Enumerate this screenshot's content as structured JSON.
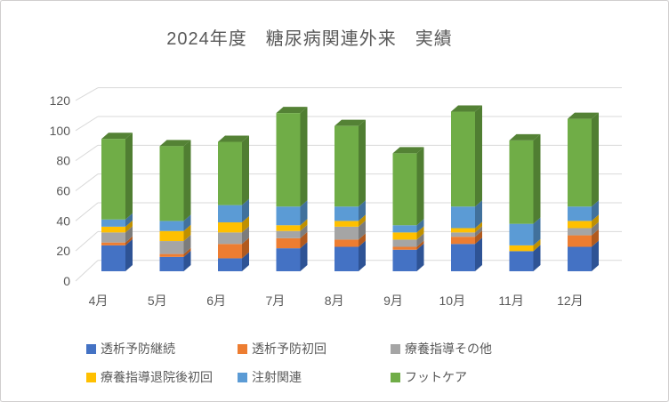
{
  "window": {
    "background": "#FFFFFF",
    "border_color": "#D0CECE"
  },
  "title": {
    "text": "2024年度　糖尿病関連外来　実績",
    "color": "#595959"
  },
  "chart_data": {
    "type": "bar",
    "stacked": true,
    "style": "3d",
    "title": "2024年度　糖尿病関連外来　実績",
    "xlabel": "",
    "ylabel": "",
    "categories": [
      "4月",
      "5月",
      "6月",
      "7月",
      "8月",
      "9月",
      "10月",
      "11月",
      "12月"
    ],
    "series": [
      {
        "name": "透析予防継続",
        "color": "#4472C4",
        "side_color": "#2E5395",
        "values": [
          18,
          10,
          9,
          16,
          17,
          15,
          19,
          14,
          17
        ]
      },
      {
        "name": "透析予防初回",
        "color": "#ED7D31",
        "side_color": "#B15A1E",
        "values": [
          2,
          2,
          10,
          7,
          5,
          2,
          5,
          0,
          8
        ]
      },
      {
        "name": "療養指導その他",
        "color": "#A5A5A5",
        "side_color": "#7C7C7C",
        "values": [
          7,
          9,
          8,
          5,
          9,
          5,
          3,
          0,
          5
        ]
      },
      {
        "name": "療養指導退院後初回",
        "color": "#FFC000",
        "side_color": "#BF9000",
        "values": [
          4,
          7,
          7,
          4,
          4,
          5,
          3,
          4,
          5
        ]
      },
      {
        "name": "注射関連",
        "color": "#5B9BD5",
        "side_color": "#41719C",
        "values": [
          5,
          7,
          12,
          13,
          10,
          5,
          15,
          15,
          10
        ]
      },
      {
        "name": "フットケア",
        "color": "#70AD47",
        "side_color": "#507E32",
        "top_color": "#548235",
        "values": [
          56,
          52,
          44,
          65,
          56,
          50,
          66,
          58,
          61
        ]
      }
    ],
    "totals": [
      92,
      87,
      90,
      110,
      101,
      82,
      111,
      91,
      106
    ],
    "yticks": [
      0,
      20,
      40,
      60,
      80,
      100,
      120
    ],
    "ylim": [
      0,
      120
    ],
    "grid": true,
    "grid_color": "#D9D9D9",
    "axis_text_color": "#595959",
    "legend_position": "bottom"
  }
}
